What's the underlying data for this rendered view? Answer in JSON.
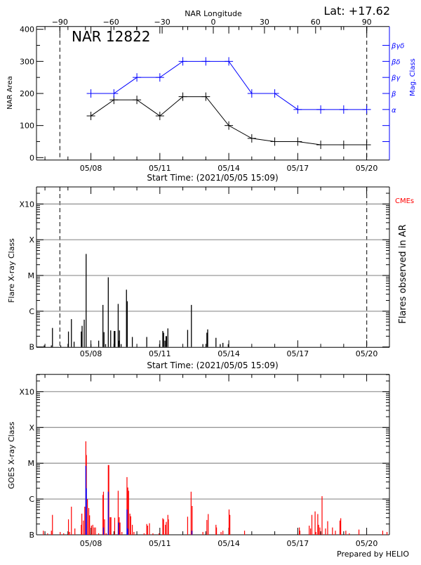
{
  "colors": {
    "axis": "#000000",
    "mag_class": "#0000ff",
    "grid": "#999999",
    "goes_long": "#ff0000",
    "goes_short": "#0000ff",
    "cme": "#ff0000"
  },
  "header": {
    "latitude": "Lat: +17.62",
    "region_title": "NAR 12822",
    "footer": "Prepared by HELIO"
  },
  "chart_data": [
    {
      "type": "line",
      "title": "NAR 12822",
      "xlabel": "Start Time: (2021/05/05 15:09)",
      "x2label": "NAR Longitude",
      "ylabel": "NAR Area",
      "y2label": "Mag. Class",
      "start_time": "2021/05/05 15:09",
      "x_tick_labels": [
        "05/08",
        "05/11",
        "05/14",
        "05/17",
        "05/20"
      ],
      "longitude_ticks": [
        -90,
        -60,
        -30,
        0,
        30,
        60,
        90
      ],
      "limb_longitudes": [
        -90,
        90
      ],
      "ylim": [
        0,
        400
      ],
      "y_ticks": [
        0,
        100,
        200,
        300,
        400
      ],
      "mag_class_levels": {
        "α": 150,
        "β": 200,
        "βγ": 250,
        "βδ": 300,
        "βγδ": 350
      },
      "dates": [
        "05/08",
        "05/09",
        "05/10",
        "05/11",
        "05/12",
        "05/13",
        "05/14",
        "05/15",
        "05/16",
        "05/17",
        "05/18",
        "05/19",
        "05/20"
      ],
      "series": [
        {
          "name": "NAR Area",
          "values": [
            130,
            180,
            180,
            130,
            190,
            190,
            100,
            60,
            50,
            50,
            40,
            40,
            40
          ]
        },
        {
          "name": "Mag. Class",
          "values": [
            "β",
            "β",
            "βγ",
            "βγ",
            "βδ",
            "βδ",
            "βδ",
            "β",
            "β",
            "α",
            "α",
            "α",
            "α"
          ]
        }
      ]
    },
    {
      "type": "bar",
      "xlabel": "Start Time: (2021/05/05 15:09)",
      "ylabel": "Flare X-ray Class",
      "y2label": "Flares observed in AR",
      "legend": "CMEs",
      "y_scale": "log",
      "y_tick_labels": [
        "B",
        "C",
        "M",
        "X",
        "X10"
      ],
      "x_tick_labels": [
        "05/08",
        "05/11",
        "05/14",
        "05/17",
        "05/20"
      ],
      "grid": true,
      "flares": [
        [
          "05/05 23:10",
          "B1.1"
        ],
        [
          "05/06 06:40",
          "B1.1"
        ],
        [
          "05/06 07:50",
          "B3.4"
        ],
        [
          "05/06 16:28",
          "B1.1"
        ],
        [
          "05/07 00:33",
          "B2.7"
        ],
        [
          "05/07 03:37",
          "B6.0"
        ],
        [
          "05/07 06:25",
          "B1.4"
        ],
        [
          "05/07 13:57",
          "B2.7"
        ],
        [
          "05/07 14:47",
          "B3.9"
        ],
        [
          "05/07 17:01",
          "B5.8"
        ],
        [
          "05/07 19:00",
          "M4.0"
        ],
        [
          "05/08 00:00",
          "B1.2"
        ],
        [
          "05/08 08:05",
          "B1.5"
        ],
        [
          "05/08 12:33",
          "C1.5"
        ],
        [
          "05/08 13:40",
          "B2.6"
        ],
        [
          "05/08 15:20",
          "B1.2"
        ],
        [
          "05/08 18:08",
          "C8.9"
        ],
        [
          "05/08 20:39",
          "B2.9"
        ],
        [
          "05/09 00:17",
          "B2.8"
        ],
        [
          "05/09 01:07",
          "B2.8"
        ],
        [
          "05/09 04:28",
          "C1.6"
        ],
        [
          "05/09 05:01",
          "B1.5"
        ],
        [
          "05/09 05:51",
          "B2.9"
        ],
        [
          "05/09 07:32",
          "B1.2"
        ],
        [
          "05/09 13:08",
          "C4.0"
        ],
        [
          "05/09 13:57",
          "C1.9"
        ],
        [
          "05/09 19:15",
          "B1.9"
        ],
        [
          "05/09 23:43",
          "B1.0"
        ],
        [
          "05/10 10:19",
          "B1.9"
        ],
        [
          "05/10 23:43",
          "B1.2"
        ],
        [
          "05/11 03:04",
          "B2.8"
        ],
        [
          "05/11 03:55",
          "B2.5"
        ],
        [
          "05/11 05:18",
          "B1.5"
        ],
        [
          "05/11 06:24",
          "B2.0"
        ],
        [
          "05/11 06:59",
          "B2.0"
        ],
        [
          "05/11 08:22",
          "B3.3"
        ],
        [
          "05/11 23:27",
          "B1.0"
        ],
        [
          "05/12 05:01",
          "B3.0"
        ],
        [
          "05/12 08:56",
          "C1.5"
        ],
        [
          "05/12 20:56",
          "B1.2"
        ],
        [
          "05/13 01:07",
          "B2.5"
        ],
        [
          "05/13 01:57",
          "B3.1"
        ],
        [
          "05/13 10:36",
          "B1.8"
        ],
        [
          "05/13 15:04",
          "B1.2"
        ],
        [
          "05/13 17:51",
          "B1.3"
        ],
        [
          "05/13 23:27",
          "B1.2"
        ]
      ]
    },
    {
      "type": "bar",
      "ylabel": "GOES X-ray Class",
      "y_scale": "log",
      "y_tick_labels": [
        "B",
        "C",
        "M",
        "X",
        "X10"
      ],
      "x_tick_labels": [
        "05/08",
        "05/11",
        "05/14",
        "05/17",
        "05/20"
      ],
      "grid": true,
      "series": [
        {
          "color": "#ff0000",
          "points": [
            [
              "05/05 22:19",
              "B1.3"
            ],
            [
              "05/06 02:47",
              "B1.1"
            ],
            [
              "05/06 06:42",
              "B1.3"
            ],
            [
              "05/06 07:49",
              "B3.6"
            ],
            [
              "05/06 15:55",
              "B1.2"
            ],
            [
              "05/06 19:32",
              "B1.1"
            ],
            [
              "05/07 00:33",
              "B2.7"
            ],
            [
              "05/07 01:41",
              "B1.2"
            ],
            [
              "05/07 03:37",
              "B6.1"
            ],
            [
              "05/07 07:15",
              "B1.5"
            ],
            [
              "05/07 13:57",
              "B1.9"
            ],
            [
              "05/07 14:31",
              "B3.9"
            ],
            [
              "05/07 16:10",
              "B2.5"
            ],
            [
              "05/07 17:35",
              "B6.1"
            ],
            [
              "05/07 18:42",
              "M4.1"
            ],
            [
              "05/07 19:15",
              "M1.7"
            ],
            [
              "05/07 20:22",
              "C1.0"
            ],
            [
              "05/07 21:46",
              "B5.6"
            ],
            [
              "05/07 22:37",
              "B3.5"
            ],
            [
              "05/08 00:33",
              "B1.8"
            ],
            [
              "05/08 01:57",
              "B1.9"
            ],
            [
              "05/08 03:21",
              "B1.6"
            ],
            [
              "05/08 04:45",
              "B1.6"
            ],
            [
              "05/08 08:05",
              "B1.1"
            ],
            [
              "05/08 12:33",
              "C1.3"
            ],
            [
              "05/08 13:07",
              "C1.6"
            ],
            [
              "05/08 14:14",
              "B2.7"
            ],
            [
              "05/08 15:55",
              "B1.1"
            ],
            [
              "05/08 18:08",
              "C8.9"
            ],
            [
              "05/08 18:42",
              "C8.9"
            ],
            [
              "05/08 20:05",
              "B3.1"
            ],
            [
              "05/08 20:56",
              "B3.1"
            ],
            [
              "05/09 00:50",
              "B3.0"
            ],
            [
              "05/09 04:28",
              "C1.7"
            ],
            [
              "05/09 05:35",
              "B3.1"
            ],
            [
              "05/09 06:25",
              "B2.2"
            ],
            [
              "05/09 08:22",
              "B1.2"
            ],
            [
              "05/09 13:40",
              "C4.1"
            ],
            [
              "05/09 14:31",
              "C2.1"
            ],
            [
              "05/09 15:21",
              "C1.7"
            ],
            [
              "05/09 16:45",
              "B3.9"
            ],
            [
              "05/09 17:35",
              "B3.3"
            ],
            [
              "05/09 19:15",
              "B1.9"
            ],
            [
              "05/09 20:56",
              "B1.2"
            ],
            [
              "05/10 07:32",
              "B1.1"
            ],
            [
              "05/10 10:19",
              "B2.0"
            ],
            [
              "05/10 11:10",
              "B1.8"
            ],
            [
              "05/10 13:08",
              "B2.1"
            ],
            [
              "05/10 16:45",
              "B1.1"
            ],
            [
              "05/10 23:09",
              "B1.1"
            ],
            [
              "05/11 03:04",
              "B2.9"
            ],
            [
              "05/11 03:55",
              "B2.7"
            ],
            [
              "05/11 05:51",
              "B1.9"
            ],
            [
              "05/11 06:42",
              "B2.3"
            ],
            [
              "05/11 08:22",
              "B3.6"
            ],
            [
              "05/11 08:56",
              "B2.7"
            ],
            [
              "05/11 18:59",
              "B1.0"
            ],
            [
              "05/12 05:01",
              "B3.2"
            ],
            [
              "05/12 08:38",
              "C1.6"
            ],
            [
              "05/12 09:46",
              "B6.4"
            ],
            [
              "05/12 20:56",
              "B1.2"
            ],
            [
              "05/13 01:07",
              "B2.6"
            ],
            [
              "05/13 02:31",
              "B3.8"
            ],
            [
              "05/13 10:36",
              "B1.9"
            ],
            [
              "05/13 11:10",
              "B1.6"
            ],
            [
              "05/13 15:55",
              "B1.2"
            ],
            [
              "05/13 17:51",
              "B1.3"
            ],
            [
              "05/14 00:17",
              "B5.1"
            ],
            [
              "05/14 01:07",
              "B3.6"
            ],
            [
              "05/14 16:28",
              "B1.3"
            ],
            [
              "05/17 01:41",
              "B1.6"
            ],
            [
              "05/17 02:14",
              "B1.3"
            ],
            [
              "05/17 12:00",
              "B1.8"
            ],
            [
              "05/17 13:24",
              "B1.5"
            ],
            [
              "05/17 14:47",
              "B3.6"
            ],
            [
              "05/17 18:08",
              "B4.5"
            ],
            [
              "05/17 18:59",
              "B1.2"
            ],
            [
              "05/17 20:56",
              "B3.8"
            ],
            [
              "05/17 21:46",
              "B1.9"
            ],
            [
              "05/17 23:09",
              "B1.6"
            ],
            [
              "05/18 01:24",
              "C1.2"
            ],
            [
              "05/18 05:01",
              "B1.5"
            ],
            [
              "05/18 07:15",
              "B2.4"
            ],
            [
              "05/18 12:17",
              "B1.6"
            ],
            [
              "05/18 15:21",
              "B1.3"
            ],
            [
              "05/18 20:05",
              "B2.5"
            ],
            [
              "05/18 20:56",
              "B2.9"
            ],
            [
              "05/19 02:14",
              "B1.3"
            ],
            [
              "05/19 05:51",
              "B1.1"
            ],
            [
              "05/19 15:55",
              "B1.4"
            ],
            [
              "05/20 16:45",
              "B1.3"
            ],
            [
              "05/20 21:13",
              "B1.2"
            ]
          ]
        },
        {
          "color": "#0000ff",
          "points": [
            [
              "05/07 18:42",
              "C8.5"
            ],
            [
              "05/07 19:15",
              "C2.0"
            ],
            [
              "05/08 13:07",
              "B1.6"
            ],
            [
              "05/08 18:08",
              "C1.6"
            ],
            [
              "05/09 04:45",
              "B2.2"
            ],
            [
              "05/09 13:40",
              "B5.1"
            ],
            [
              "05/09 14:31",
              "B1.5"
            ],
            [
              "05/12 09:29",
              "B1.3"
            ]
          ]
        }
      ]
    }
  ]
}
